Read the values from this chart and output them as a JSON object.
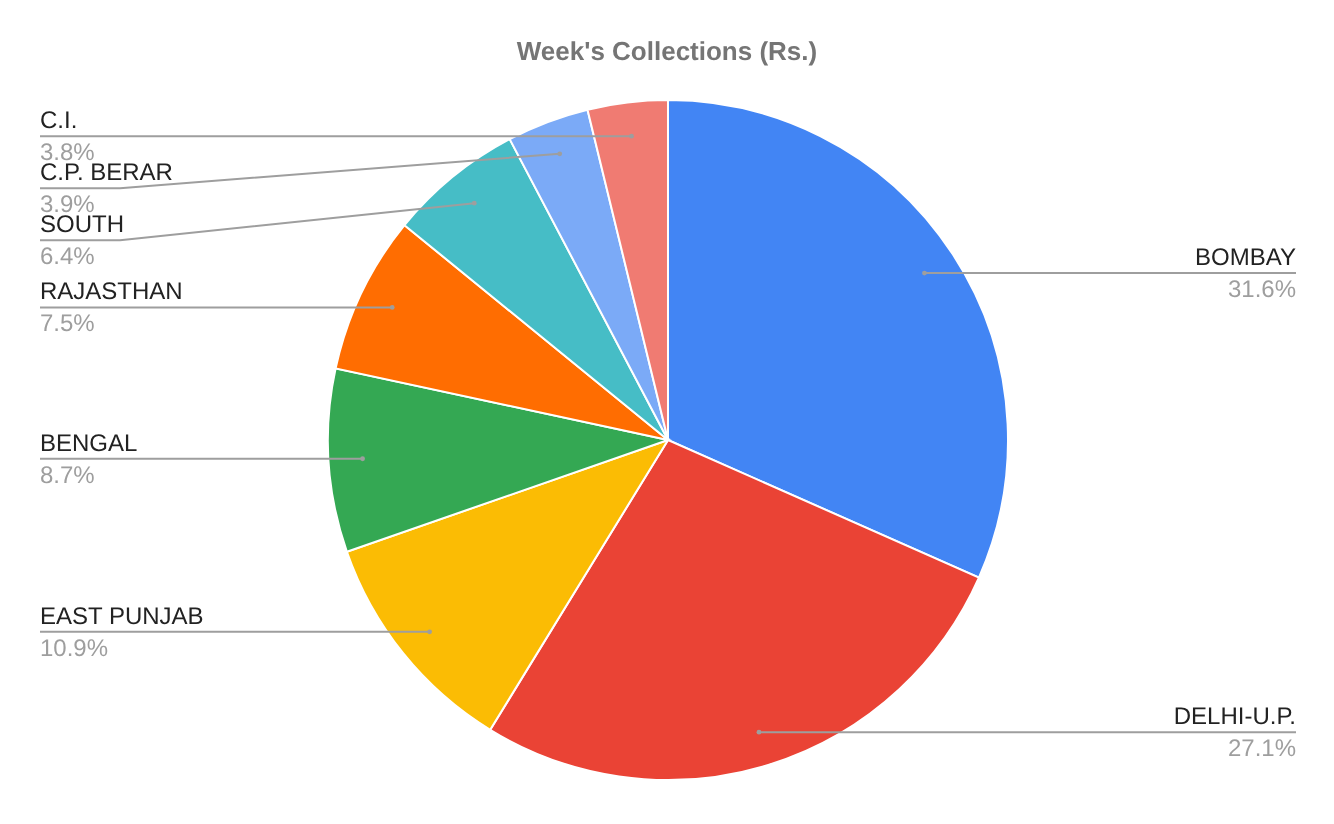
{
  "chart_data": {
    "type": "pie",
    "title": "Week's Collections (Rs.)",
    "categories": [
      "BOMBAY",
      "DELHI-U.P.",
      "EAST PUNJAB",
      "BENGAL",
      "RAJASTHAN",
      "SOUTH",
      "C.P. BERAR",
      "C.I."
    ],
    "values": [
      31.6,
      27.1,
      10.9,
      8.7,
      7.5,
      6.4,
      3.9,
      3.8
    ],
    "colors": [
      "#4285f4",
      "#ea4335",
      "#fbbc04",
      "#34a853",
      "#ff6d01",
      "#46bdc6",
      "#7baaf7",
      "#f07b72"
    ],
    "value_labels": [
      "31.6%",
      "27.1%",
      "10.9%",
      "8.7%",
      "7.5%",
      "6.4%",
      "3.9%",
      "3.8%"
    ]
  }
}
